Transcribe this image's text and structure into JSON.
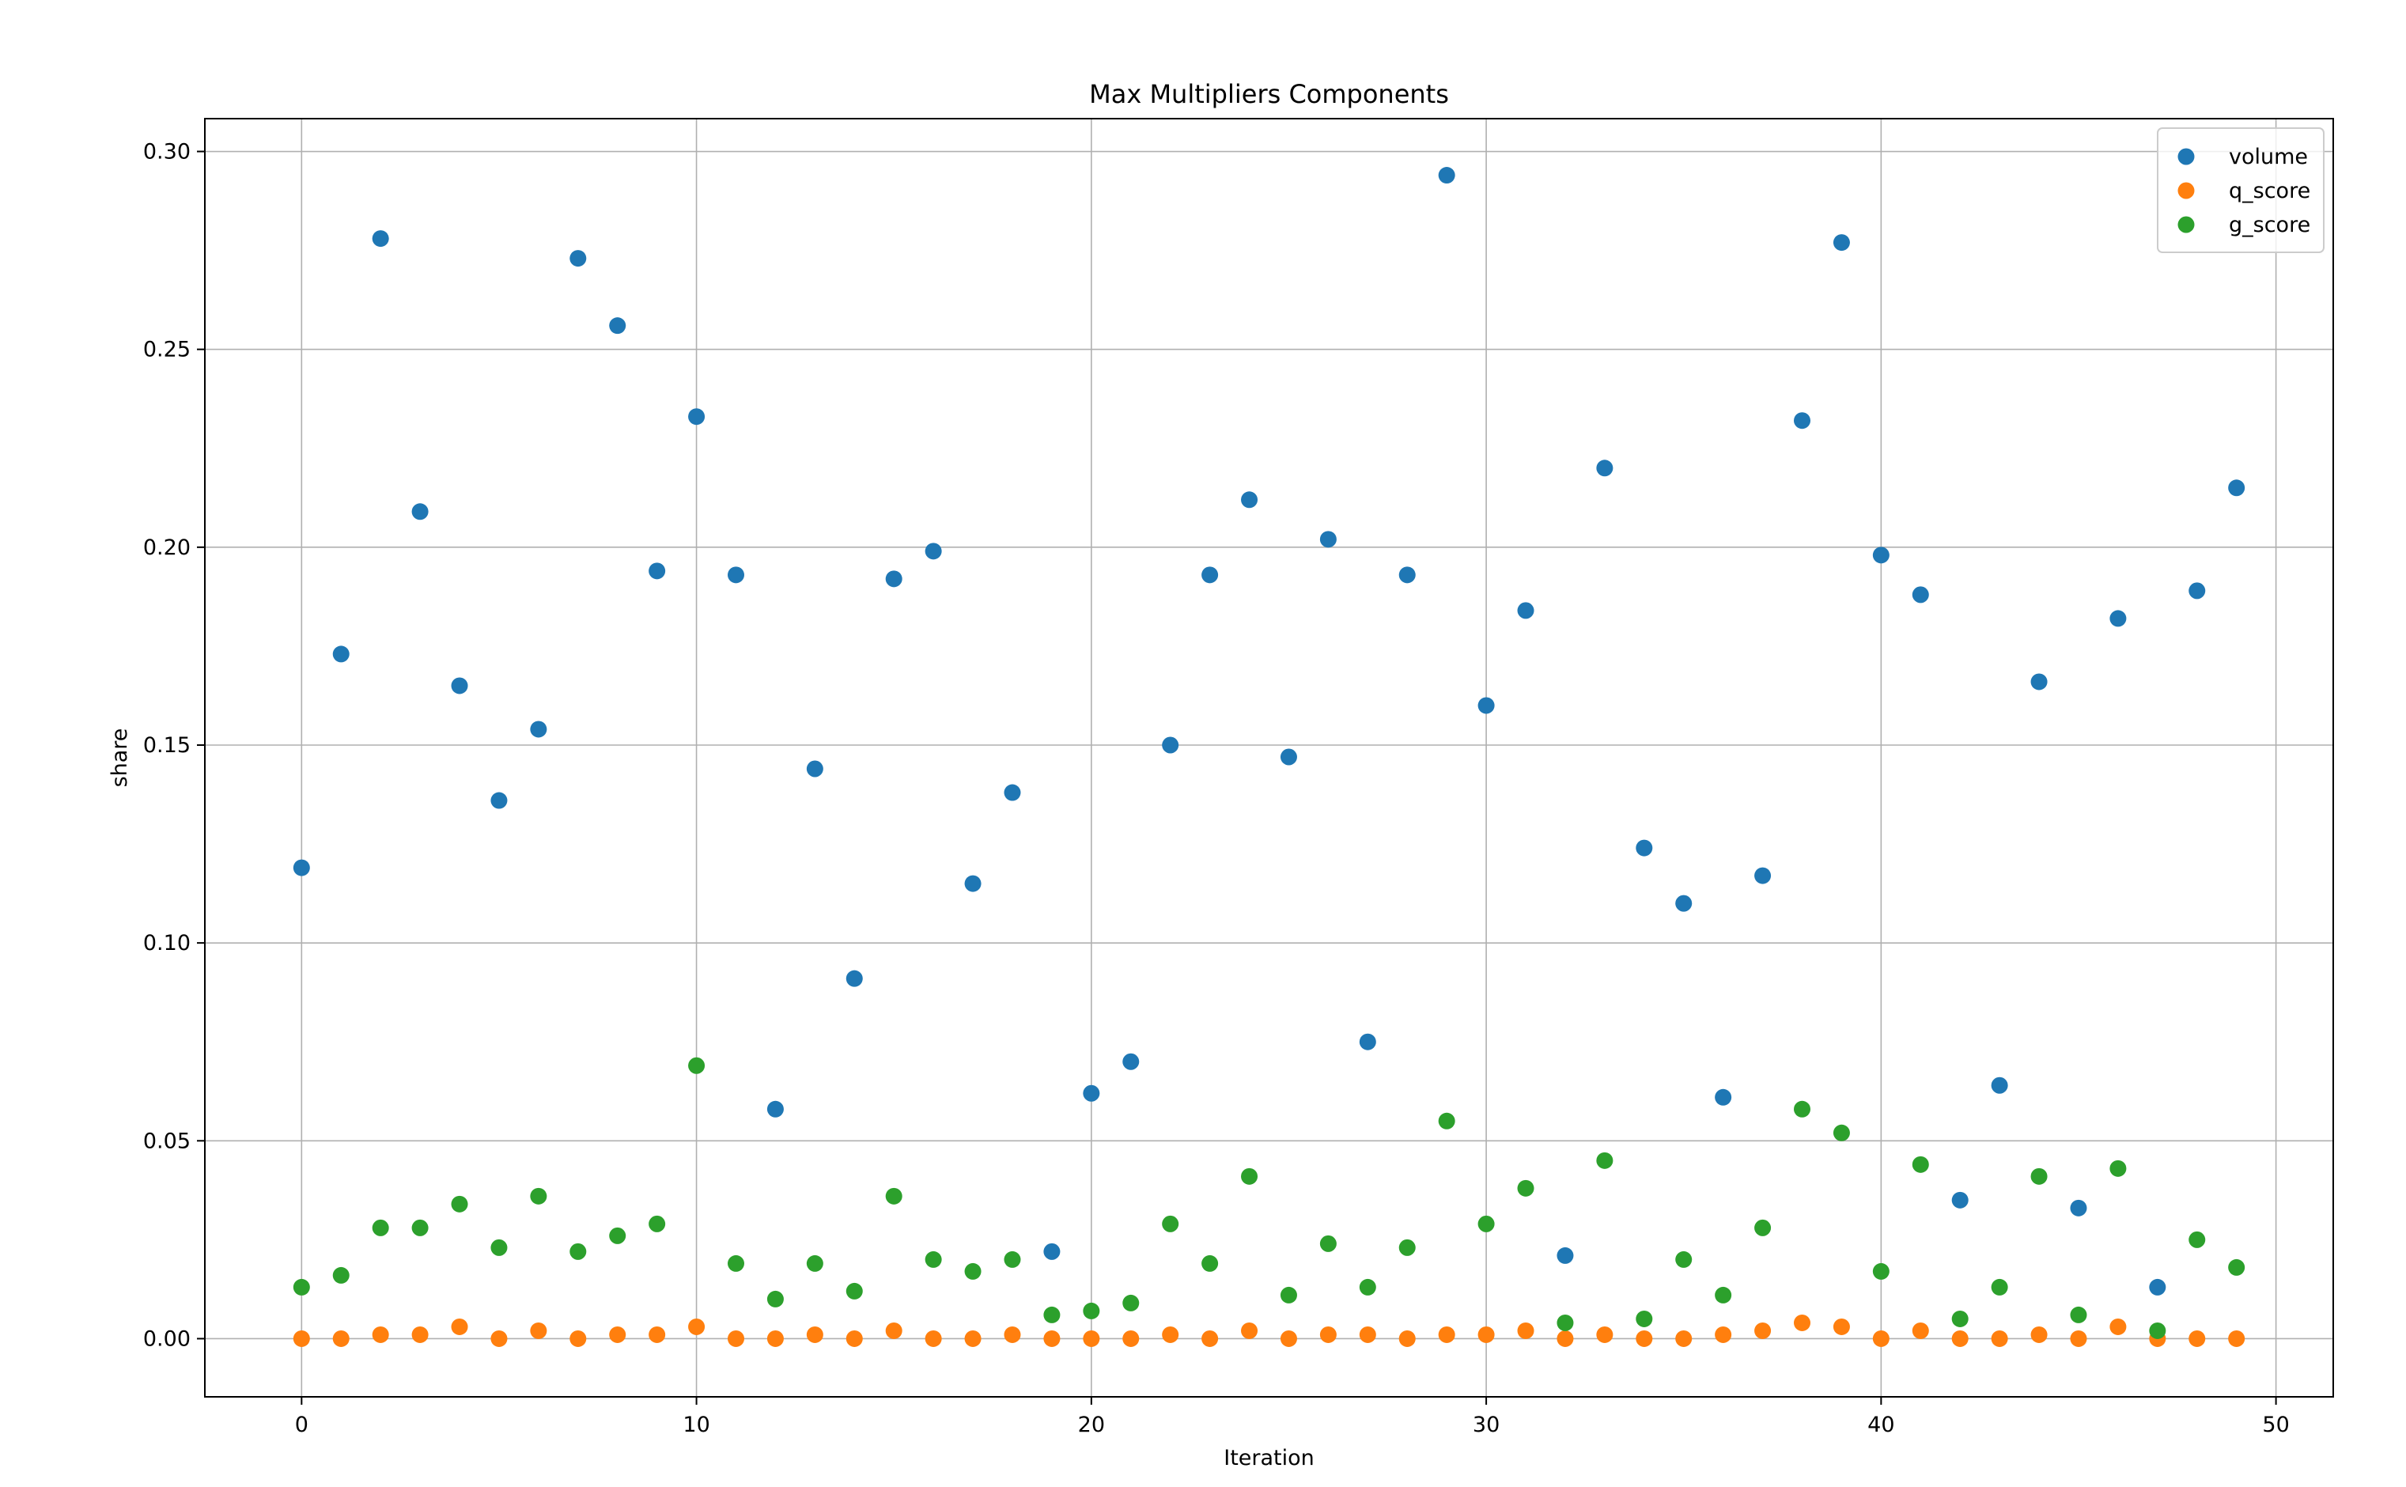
{
  "chart_data": {
    "type": "scatter",
    "title": "Max Multipliers Components",
    "xlabel": "Iteration",
    "ylabel": "share",
    "xlim": [
      -2.45,
      51.45
    ],
    "ylim": [
      -0.0147,
      0.3083
    ],
    "xticks": [
      0,
      10,
      20,
      30,
      40,
      50
    ],
    "yticks": [
      0.0,
      0.05,
      0.1,
      0.15,
      0.2,
      0.25,
      0.3
    ],
    "ytick_labels": [
      "0.00",
      "0.05",
      "0.10",
      "0.15",
      "0.20",
      "0.25",
      "0.30"
    ],
    "grid": true,
    "legend_position": "top-right",
    "x": [
      0,
      1,
      2,
      3,
      4,
      5,
      6,
      7,
      8,
      9,
      10,
      11,
      12,
      13,
      14,
      15,
      16,
      17,
      18,
      19,
      20,
      21,
      22,
      23,
      24,
      25,
      26,
      27,
      28,
      29,
      30,
      31,
      32,
      33,
      34,
      35,
      36,
      37,
      38,
      39,
      40,
      41,
      42,
      43,
      44,
      45,
      46,
      47,
      48,
      49
    ],
    "series": [
      {
        "name": "volume",
        "color": "#1f77b4",
        "values": [
          0.119,
          0.173,
          0.278,
          0.209,
          0.165,
          0.136,
          0.154,
          0.273,
          0.256,
          0.194,
          0.233,
          0.193,
          0.058,
          0.144,
          0.091,
          0.192,
          0.199,
          0.115,
          0.138,
          0.022,
          0.062,
          0.07,
          0.15,
          0.193,
          0.212,
          0.147,
          0.202,
          0.075,
          0.193,
          0.294,
          0.16,
          0.184,
          0.021,
          0.22,
          0.124,
          0.11,
          0.061,
          0.117,
          0.232,
          0.277,
          0.198,
          0.188,
          0.035,
          0.064,
          0.166,
          0.033,
          0.182,
          0.013,
          0.189,
          0.215
        ]
      },
      {
        "name": "q_score",
        "color": "#ff7f0e",
        "values": [
          0.0,
          0.0,
          0.001,
          0.001,
          0.003,
          0.0,
          0.002,
          0.0,
          0.001,
          0.001,
          0.003,
          0.0,
          0.0,
          0.001,
          0.0,
          0.002,
          0.0,
          0.0,
          0.001,
          0.0,
          0.0,
          0.0,
          0.001,
          0.0,
          0.002,
          0.0,
          0.001,
          0.001,
          0.0,
          0.001,
          0.001,
          0.002,
          0.0,
          0.001,
          0.0,
          0.0,
          0.001,
          0.002,
          0.004,
          0.003,
          0.0,
          0.002,
          0.0,
          0.0,
          0.001,
          0.0,
          0.003,
          0.0,
          0.0,
          0.0
        ]
      },
      {
        "name": "g_score",
        "color": "#2ca02c",
        "values": [
          0.013,
          0.016,
          0.028,
          0.028,
          0.034,
          0.023,
          0.036,
          0.022,
          0.026,
          0.029,
          0.069,
          0.019,
          0.01,
          0.019,
          0.012,
          0.036,
          0.02,
          0.017,
          0.02,
          0.006,
          0.007,
          0.009,
          0.029,
          0.019,
          0.041,
          0.011,
          0.024,
          0.013,
          0.023,
          0.055,
          0.029,
          0.038,
          0.004,
          0.045,
          0.005,
          0.02,
          0.011,
          0.028,
          0.058,
          0.052,
          0.017,
          0.044,
          0.005,
          0.013,
          0.041,
          0.006,
          0.043,
          0.002,
          0.025,
          0.018
        ]
      }
    ]
  }
}
